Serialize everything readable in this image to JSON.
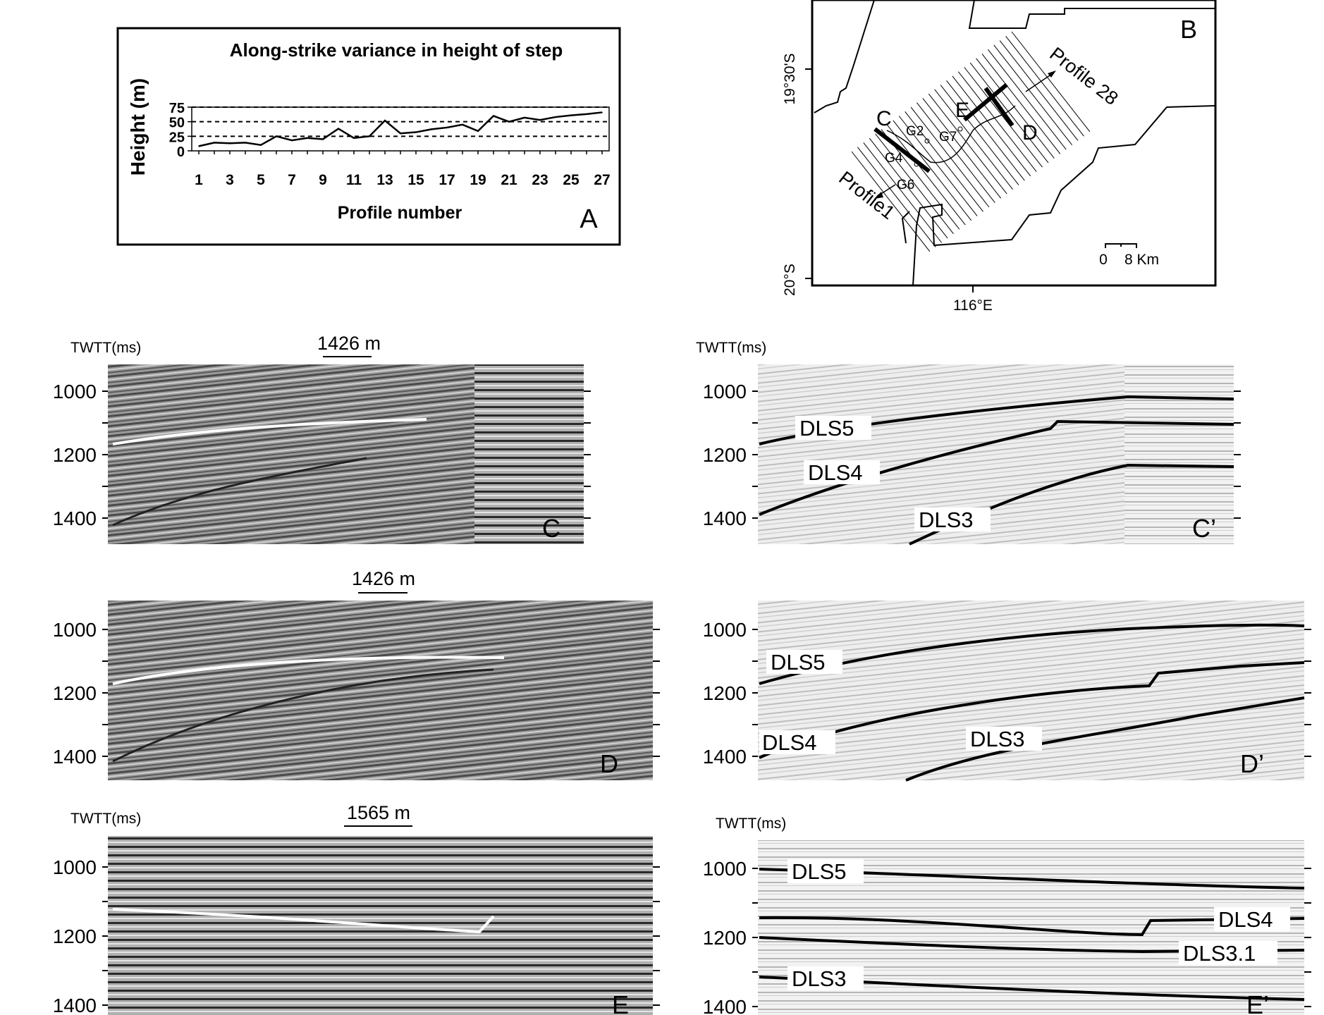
{
  "figure": {
    "panelA": {
      "letter": "A",
      "chart_data": {
        "type": "line",
        "title": "Along-strike variance in  height of step",
        "xlabel": "Profile number",
        "ylabel": "Height (m)",
        "x": [
          1,
          2,
          3,
          4,
          5,
          6,
          7,
          8,
          9,
          10,
          11,
          12,
          13,
          14,
          15,
          16,
          17,
          18,
          19,
          20,
          21,
          22,
          23,
          24,
          25,
          26,
          27
        ],
        "y": [
          8,
          14,
          13,
          14,
          10,
          25,
          18,
          22,
          20,
          38,
          22,
          25,
          52,
          30,
          32,
          37,
          40,
          45,
          34,
          60,
          50,
          57,
          53,
          58,
          61,
          63,
          66
        ],
        "xticks": [
          "1",
          "3",
          "5",
          "7",
          "9",
          "11",
          "13",
          "15",
          "17",
          "19",
          "21",
          "23",
          "25",
          "27"
        ],
        "yticks": [
          "0",
          "25",
          "50",
          "75"
        ],
        "ylim": [
          0,
          75
        ],
        "gridlines": "dashed at 25, 50, 75"
      }
    },
    "panelB": {
      "letter": "B",
      "lat_labels": [
        "19°30'S",
        "20°S"
      ],
      "lon_label": "116°E",
      "profile_labels": [
        "Profile 28",
        "Profile1"
      ],
      "section_labels": [
        "C",
        "D",
        "E"
      ],
      "sites": [
        "G2",
        "G4",
        "G6",
        "G7"
      ],
      "scale": {
        "zero": "0",
        "label": "8 Km"
      }
    },
    "axis_label": "TWTT(ms)",
    "depth_ticks": [
      "1000",
      "1200",
      "1400"
    ],
    "sections": [
      {
        "id": "C",
        "label": "C",
        "scale": "1426 m",
        "interpreted_label": "C’",
        "horizons": [
          "DLS5",
          "DLS4",
          "DLS3"
        ]
      },
      {
        "id": "D",
        "label": "D",
        "scale": "1426 m",
        "interpreted_label": "D’",
        "horizons": [
          "DLS5",
          "DLS4",
          "DLS3"
        ]
      },
      {
        "id": "E",
        "label": "E",
        "scale": "1565 m",
        "interpreted_label": "E’",
        "horizons": [
          "DLS5",
          "DLS4",
          "DLS3.1",
          "DLS3"
        ]
      }
    ]
  }
}
